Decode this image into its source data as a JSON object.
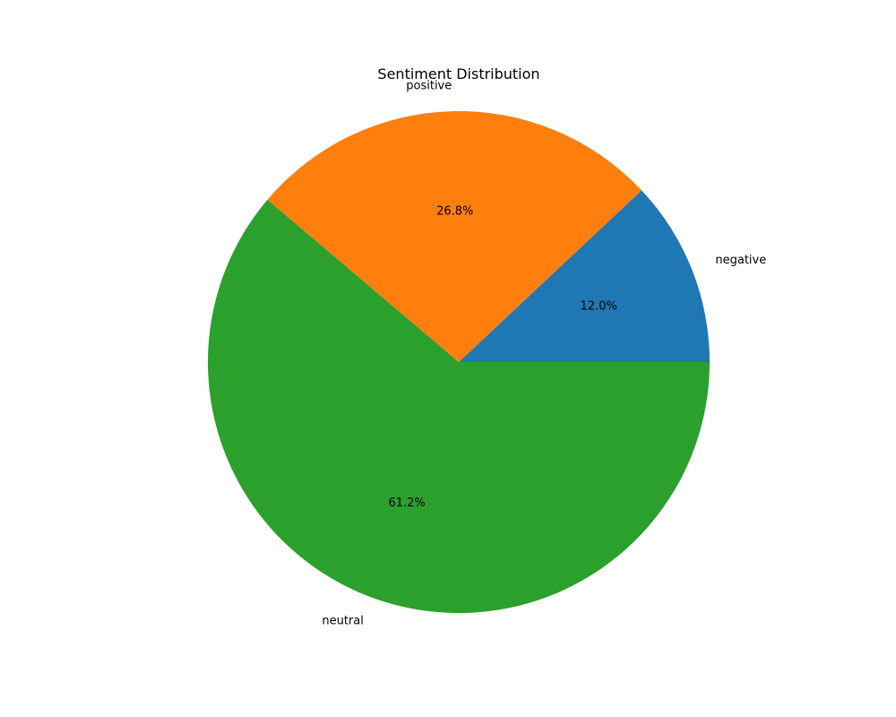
{
  "chart_data": {
    "type": "pie",
    "title": "Sentiment Distribution",
    "slices": [
      {
        "label": "negative",
        "value": 12.0,
        "pct_label": "12.0%",
        "color": "#1f77b4"
      },
      {
        "label": "positive",
        "value": 26.8,
        "pct_label": "26.8%",
        "color": "#ff7f0e"
      },
      {
        "label": "neutral",
        "value": 61.2,
        "pct_label": "61.2%",
        "color": "#2ca02c"
      }
    ],
    "start_angle_deg": 0,
    "direction": "counterclockwise",
    "legend": "none"
  }
}
